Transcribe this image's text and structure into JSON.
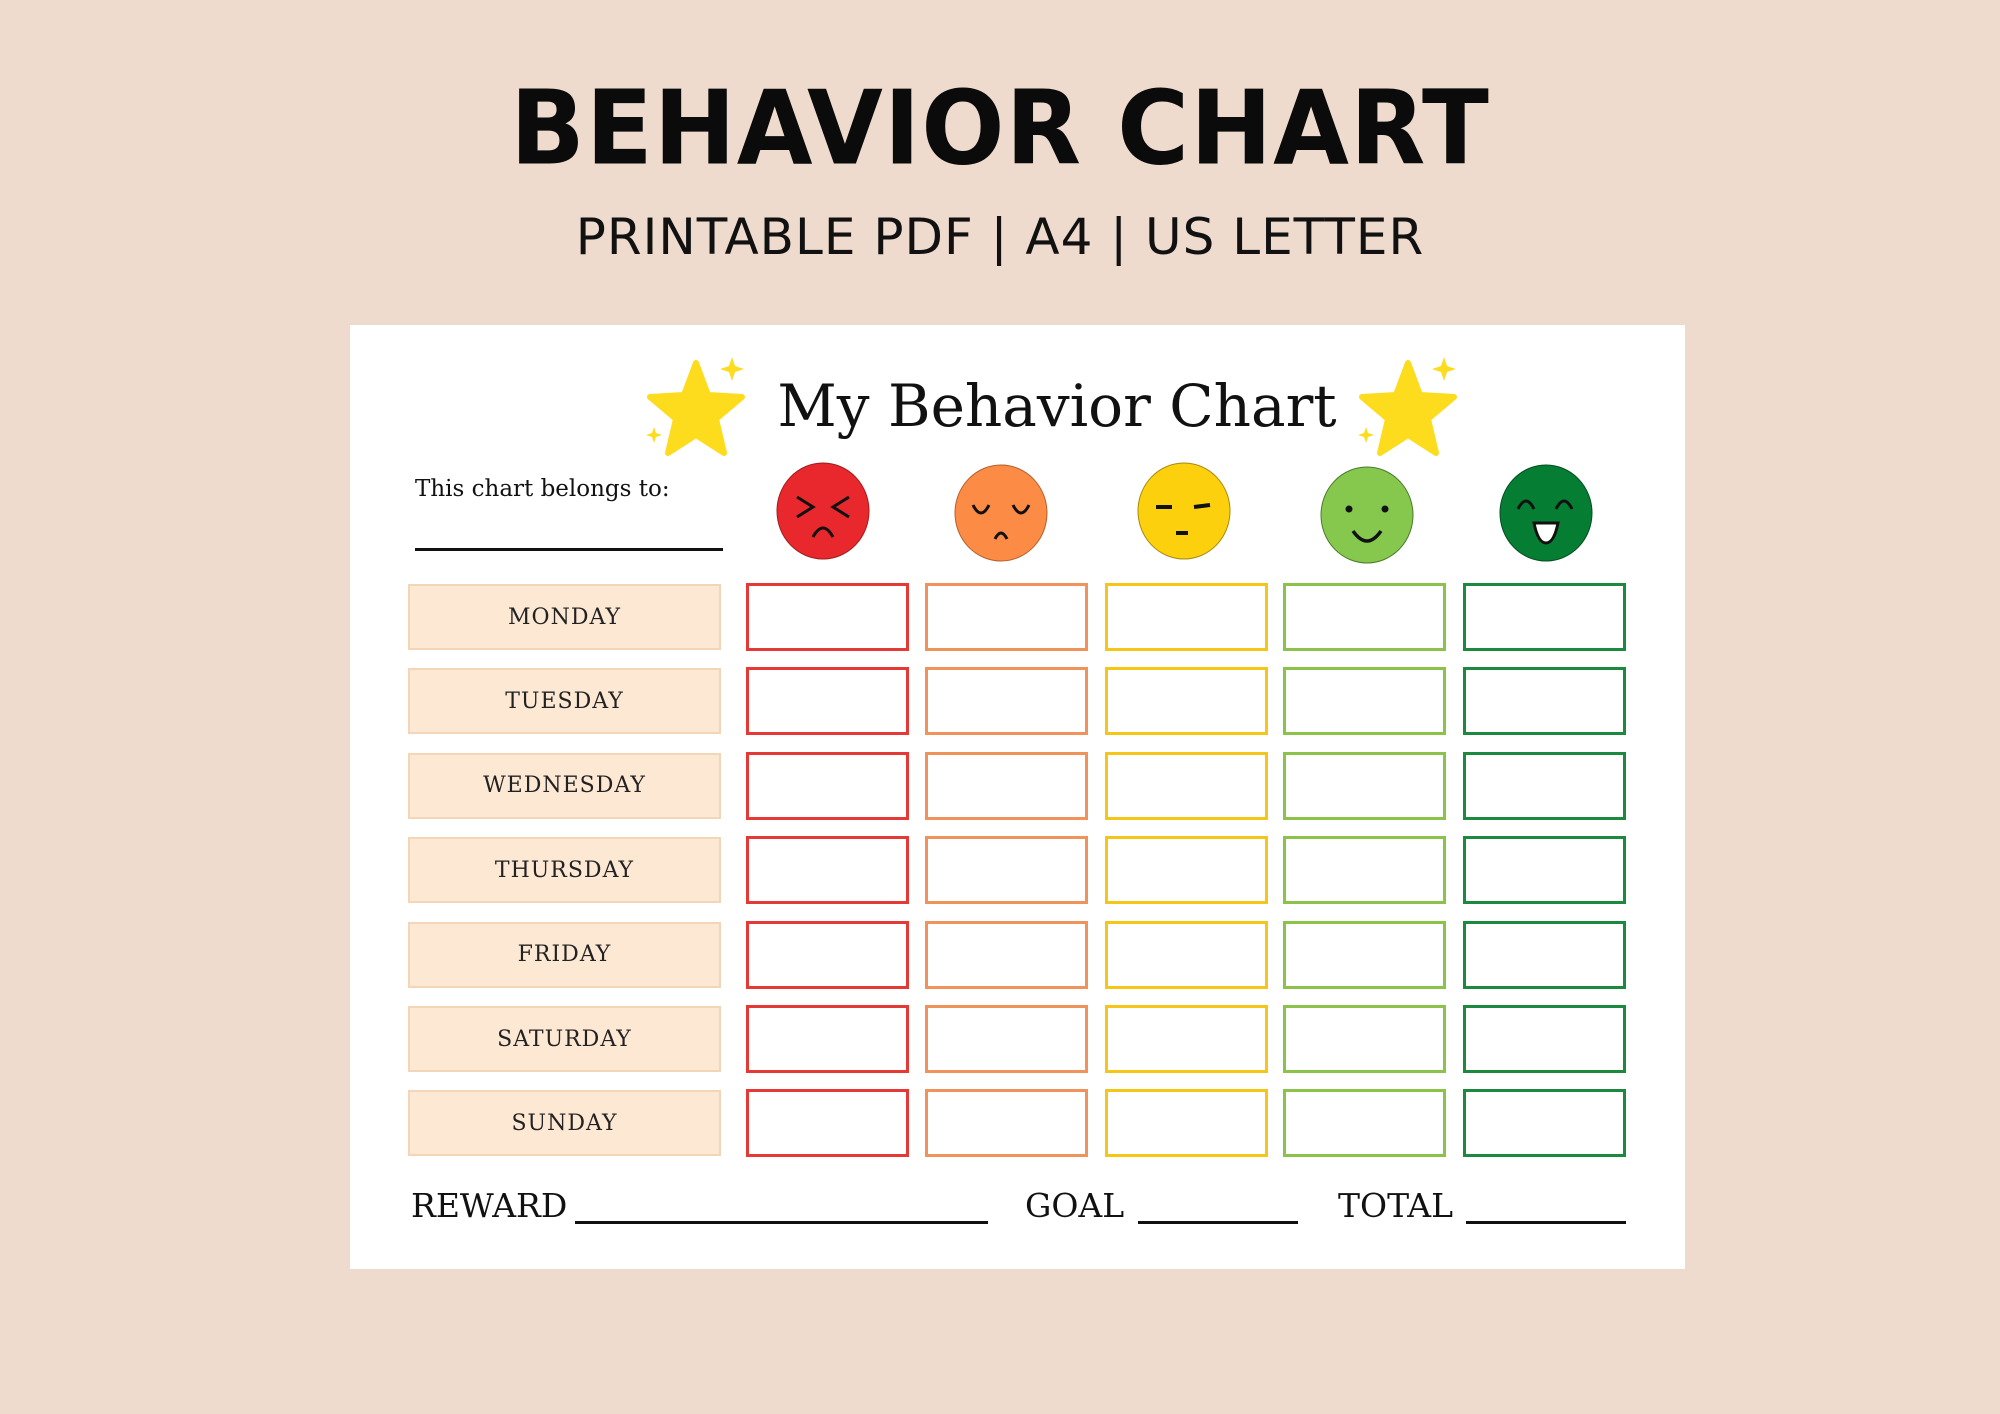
{
  "header": {
    "title": "BEHAVIOR CHART",
    "subtitle": "PRINTABLE PDF | A4 | US LETTER"
  },
  "chart": {
    "title": "My Behavior Chart",
    "owner_label": "This chart belongs to:",
    "faces": [
      {
        "mood": "angry",
        "color": "#e8282c",
        "border": "#e53935"
      },
      {
        "mood": "sad",
        "color": "#fc8c45",
        "border": "#f0935a"
      },
      {
        "mood": "neutral",
        "color": "#fdd00d",
        "border": "#f5c518"
      },
      {
        "mood": "happy",
        "color": "#86c84e",
        "border": "#8bc34a"
      },
      {
        "mood": "very-happy",
        "color": "#057e34",
        "border": "#1b8a3f"
      }
    ],
    "days": [
      "MONDAY",
      "TUESDAY",
      "WEDNESDAY",
      "THURSDAY",
      "FRIDAY",
      "SATURDAY",
      "SUNDAY"
    ],
    "star_color": "#fcdc1c"
  },
  "footer": {
    "reward_label": "REWARD",
    "goal_label": "GOAL",
    "total_label": "TOTAL"
  }
}
